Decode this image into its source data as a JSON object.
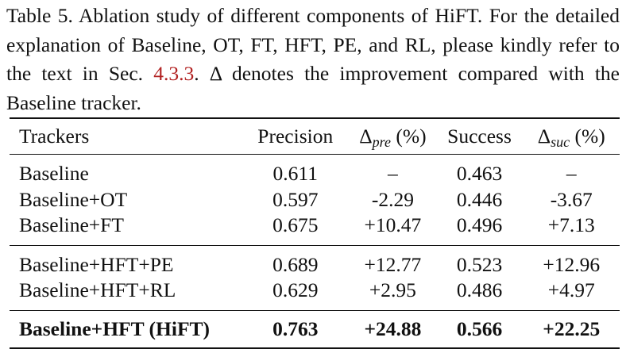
{
  "caption": {
    "part1": "Table 5. Ablation study of different components of HiFT. For the detailed explanation of Baseline, OT, FT, HFT, PE, and RL, please kindly refer to the text in Sec. ",
    "ref": "4.3.3",
    "part2": ". Δ denotes the improvement compared with the Baseline tracker."
  },
  "table": {
    "headers": {
      "trackers": "Trackers",
      "precision": "Precision",
      "delta_pre_symbol": "Δ",
      "delta_pre_sub": "pre",
      "delta_pre_unit": " (%)",
      "success": "Success",
      "delta_suc_symbol": "Δ",
      "delta_suc_sub": "suc",
      "delta_suc_unit": " (%)"
    },
    "rows": [
      {
        "tracker": "Baseline",
        "precision": "0.611",
        "delta_pre": "–",
        "success": "0.463",
        "delta_suc": "–"
      },
      {
        "tracker": "Baseline+OT",
        "precision": "0.597",
        "delta_pre": "-2.29",
        "success": "0.446",
        "delta_suc": "-3.67"
      },
      {
        "tracker": "Baseline+FT",
        "precision": "0.675",
        "delta_pre": "+10.47",
        "success": "0.496",
        "delta_suc": "+7.13"
      },
      {
        "tracker": "Baseline+HFT+PE",
        "precision": "0.689",
        "delta_pre": "+12.77",
        "success": "0.523",
        "delta_suc": "+12.96"
      },
      {
        "tracker": "Baseline+HFT+RL",
        "precision": "0.629",
        "delta_pre": "+2.95",
        "success": "0.486",
        "delta_suc": "+4.97"
      },
      {
        "tracker": "Baseline+HFT (HiFT)",
        "precision": "0.763",
        "delta_pre": "+24.88",
        "success": "0.566",
        "delta_suc": "+22.25"
      }
    ]
  }
}
